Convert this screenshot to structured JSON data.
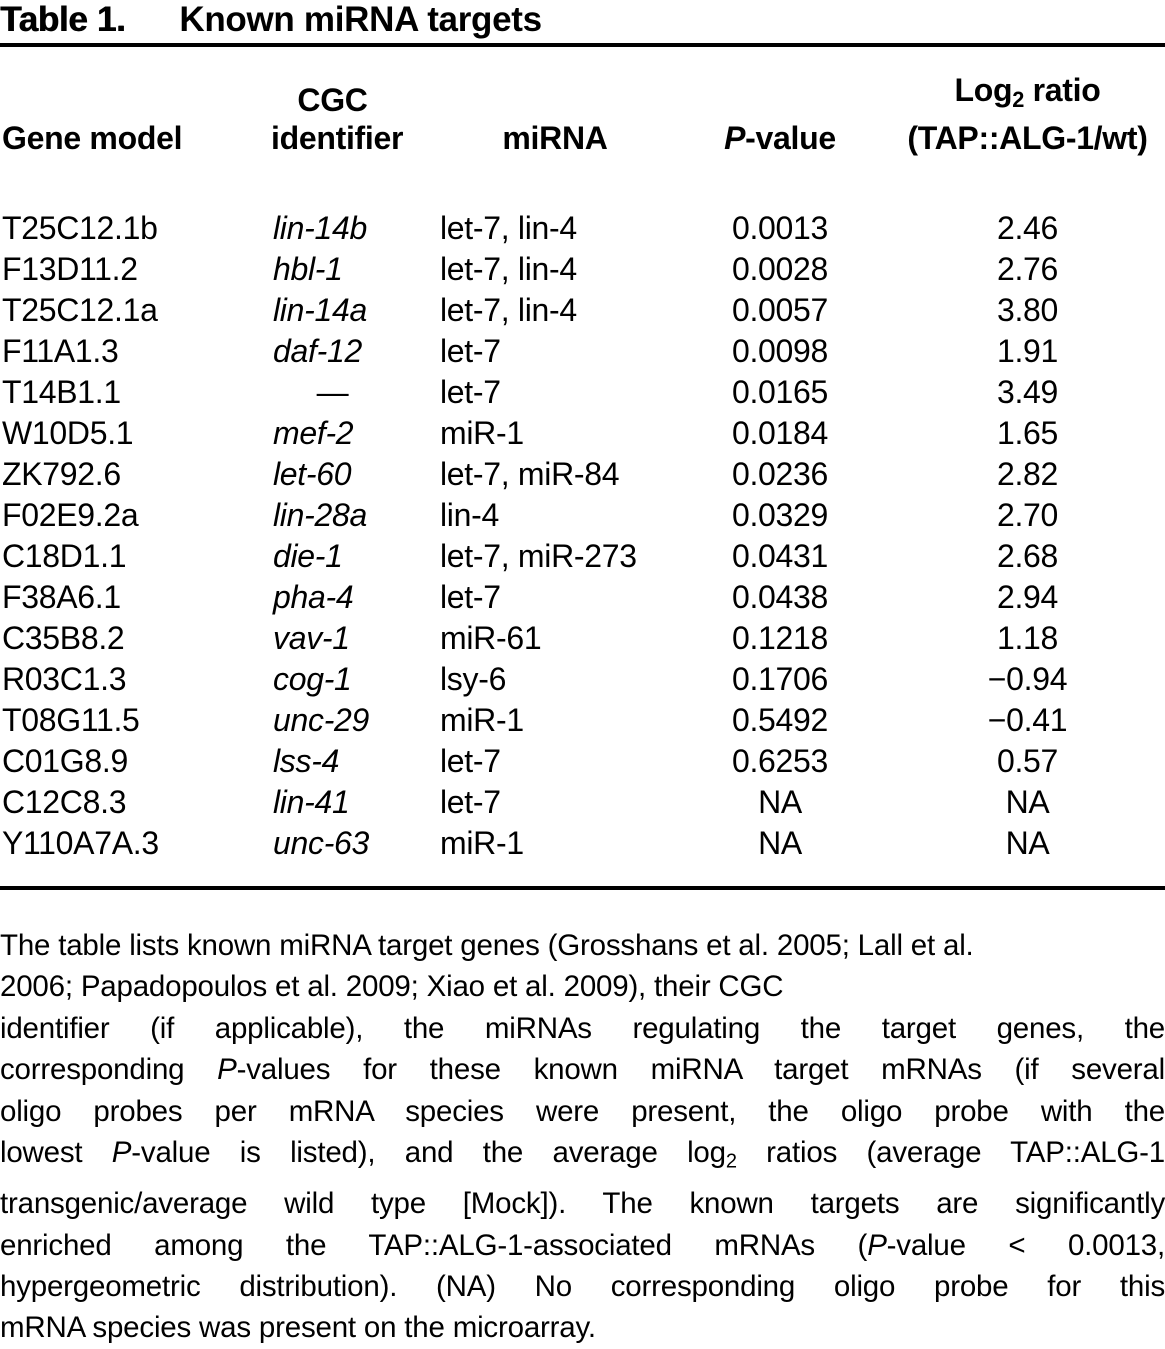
{
  "title": {
    "label": "Table 1.",
    "text": "Known miRNA targets"
  },
  "table": {
    "columns": {
      "gene_model": "Gene model",
      "cgc_top": "CGC",
      "cgc_bottom": "identifier",
      "mirna": "miRNA",
      "pvalue_p": "P",
      "pvalue_rest": "-value",
      "ratio_top_pre": "Log",
      "ratio_top_sub": "2",
      "ratio_top_post": " ratio",
      "ratio_bottom": "(TAP::ALG-1/wt)"
    },
    "rows": [
      {
        "gene": "T25C12.1b",
        "cgc": "lin-14b",
        "mirna": "let-7, lin-4",
        "pvalue": "0.0013",
        "ratio": "2.46"
      },
      {
        "gene": "F13D11.2",
        "cgc": "hbl-1",
        "mirna": "let-7, lin-4",
        "pvalue": "0.0028",
        "ratio": "2.76"
      },
      {
        "gene": "T25C12.1a",
        "cgc": "lin-14a",
        "mirna": "let-7, lin-4",
        "pvalue": "0.0057",
        "ratio": "3.80"
      },
      {
        "gene": "F11A1.3",
        "cgc": "daf-12",
        "mirna": "let-7",
        "pvalue": "0.0098",
        "ratio": "1.91"
      },
      {
        "gene": "T14B1.1",
        "cgc": "—",
        "mirna": "let-7",
        "pvalue": "0.0165",
        "ratio": "3.49"
      },
      {
        "gene": "W10D5.1",
        "cgc": "mef-2",
        "mirna": "miR-1",
        "pvalue": "0.0184",
        "ratio": "1.65"
      },
      {
        "gene": "ZK792.6",
        "cgc": "let-60",
        "mirna": "let-7, miR-84",
        "pvalue": "0.0236",
        "ratio": "2.82"
      },
      {
        "gene": "F02E9.2a",
        "cgc": "lin-28a",
        "mirna": "lin-4",
        "pvalue": "0.0329",
        "ratio": "2.70"
      },
      {
        "gene": "C18D1.1",
        "cgc": "die-1",
        "mirna": "let-7, miR-273",
        "pvalue": "0.0431",
        "ratio": "2.68"
      },
      {
        "gene": "F38A6.1",
        "cgc": "pha-4",
        "mirna": "let-7",
        "pvalue": "0.0438",
        "ratio": "2.94"
      },
      {
        "gene": "C35B8.2",
        "cgc": "vav-1",
        "mirna": "miR-61",
        "pvalue": "0.1218",
        "ratio": "1.18"
      },
      {
        "gene": "R03C1.3",
        "cgc": "cog-1",
        "mirna": "lsy-6",
        "pvalue": "0.1706",
        "ratio": "−0.94"
      },
      {
        "gene": "T08G11.5",
        "cgc": "unc-29",
        "mirna": "miR-1",
        "pvalue": "0.5492",
        "ratio": "−0.41"
      },
      {
        "gene": "C01G8.9",
        "cgc": "lss-4",
        "mirna": "let-7",
        "pvalue": "0.6253",
        "ratio": "0.57"
      },
      {
        "gene": "C12C8.3",
        "cgc": "lin-41",
        "mirna": "let-7",
        "pvalue": "NA",
        "ratio": "NA"
      },
      {
        "gene": "Y110A7A.3",
        "cgc": "unc-63",
        "mirna": "miR-1",
        "pvalue": "NA",
        "ratio": "NA"
      }
    ]
  },
  "footnote": {
    "lines": [
      {
        "segments": [
          {
            "text": "The table lists known miRNA target genes (Grosshans et al. 2005; Lall et al."
          }
        ]
      },
      {
        "segments": [
          {
            "text": "2006; Papadopoulos et al. 2009; Xiao et al. 2009), their CGC"
          }
        ]
      },
      {
        "segments": [
          {
            "text": "identifier (if applicable), the miRNAs regulating the target genes, the"
          }
        ]
      },
      {
        "segments": [
          {
            "text": "corresponding "
          },
          {
            "text": "P",
            "style": "italic"
          },
          {
            "text": "-values for these known miRNA target mRNAs (if several"
          }
        ]
      },
      {
        "segments": [
          {
            "text": "oligo probes per mRNA species were present, the oligo probe with the"
          }
        ]
      },
      {
        "segments": [
          {
            "text": "lowest "
          },
          {
            "text": "P",
            "style": "italic"
          },
          {
            "text": "-value is listed), and the average log"
          },
          {
            "text": "2",
            "style": "sub"
          },
          {
            "text": " ratios (average TAP::ALG-1"
          }
        ]
      },
      {
        "segments": [
          {
            "text": "transgenic/average wild type [Mock]). The known targets are significantly"
          }
        ]
      },
      {
        "segments": [
          {
            "text": "enriched among the TAP::ALG-1-associated mRNAs ("
          },
          {
            "text": "P",
            "style": "italic"
          },
          {
            "text": "-value < 0.0013,"
          }
        ]
      },
      {
        "segments": [
          {
            "text": "hypergeometric distribution). (NA) No corresponding oligo probe for this"
          }
        ]
      },
      {
        "segments": [
          {
            "text": "mRNA species was present on the microarray."
          }
        ]
      }
    ]
  }
}
